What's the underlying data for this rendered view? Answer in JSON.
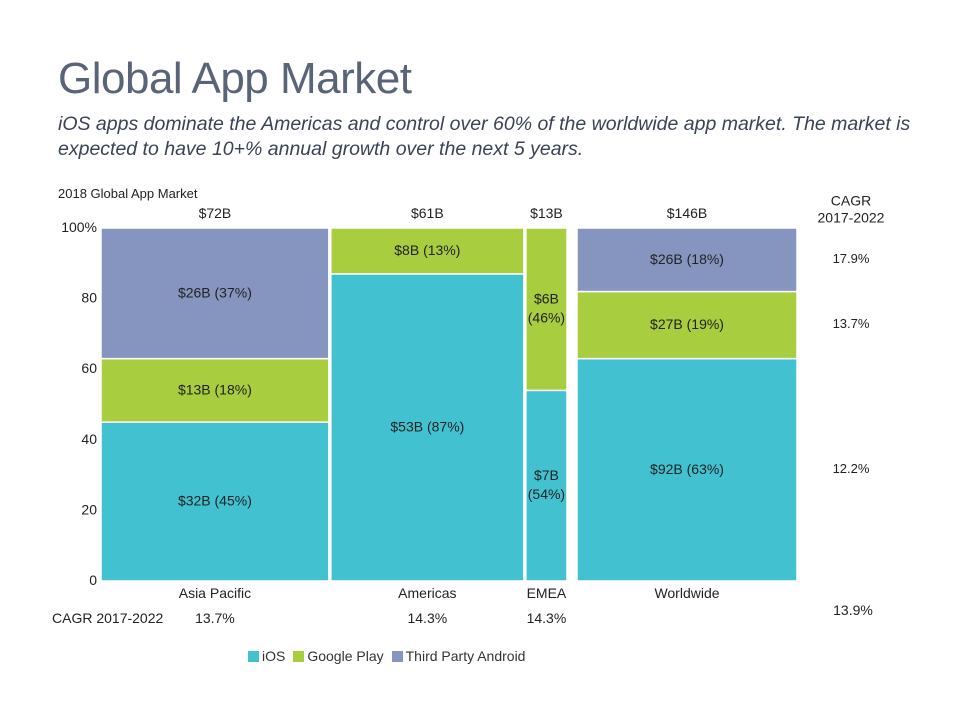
{
  "title": "Global App Market",
  "subtitle": "iOS apps dominate the Americas and control over 60% of the worldwide app market.  The market is expected to have 10+% annual growth over the next 5 years.",
  "colors": {
    "iOS": "#42c2d0",
    "Google Play": "#a8cd3e",
    "Third Party Android": "#8695bf"
  },
  "chart_data": {
    "type": "bar",
    "subtype": "marimekko",
    "title": "2018 Global App Market",
    "ylim": [
      0,
      100
    ],
    "y_ticks": [
      "0",
      "20",
      "40",
      "60",
      "80",
      "100%"
    ],
    "series": [
      {
        "name": "iOS"
      },
      {
        "name": "Google Play"
      },
      {
        "name": "Third Party Android"
      }
    ],
    "categories": [
      {
        "name": "Asia Pacific",
        "total": 72,
        "total_label": "$72B",
        "cagr": "13.7%",
        "segments": [
          {
            "series": "iOS",
            "pct": 45,
            "label": "$32B (45%)"
          },
          {
            "series": "Google Play",
            "pct": 18,
            "label": "$13B (18%)"
          },
          {
            "series": "Third Party Android",
            "pct": 37,
            "label": "$26B (37%)"
          }
        ]
      },
      {
        "name": "Americas",
        "total": 61,
        "total_label": "$61B",
        "cagr": "14.3%",
        "segments": [
          {
            "series": "iOS",
            "pct": 87,
            "label": "$53B (87%)"
          },
          {
            "series": "Google Play",
            "pct": 13,
            "label": "$8B (13%)"
          }
        ]
      },
      {
        "name": "EMEA",
        "total": 13,
        "total_label": "$13B",
        "cagr": "14.3%",
        "segments": [
          {
            "series": "iOS",
            "pct": 54,
            "label": "$7B\n(54%)"
          },
          {
            "series": "Google Play",
            "pct": 46,
            "label": "$6B\n(46%)"
          }
        ]
      }
    ],
    "worldwide": {
      "name": "Worldwide",
      "total": 146,
      "total_label": "$146B",
      "cagr": "13.9%",
      "segments": [
        {
          "series": "iOS",
          "pct": 63,
          "label": "$92B (63%)",
          "cagr": "12.2%"
        },
        {
          "series": "Google Play",
          "pct": 19,
          "label": "$27B (19%)",
          "cagr": "13.7%"
        },
        {
          "series": "Third Party Android",
          "pct": 18,
          "label": "$26B (18%)",
          "cagr": "17.9%"
        }
      ]
    },
    "cagr_row_label": "CAGR 2017-2022",
    "cagr_column_header": "CAGR\n2017-2022"
  }
}
